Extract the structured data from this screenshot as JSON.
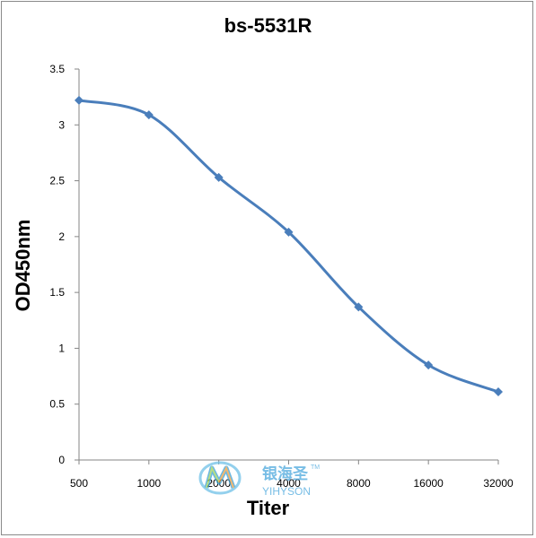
{
  "chart_data": {
    "type": "line",
    "title": "bs-5531R",
    "xlabel": "Titer",
    "ylabel": "OD450nm",
    "categories": [
      "500",
      "1000",
      "2000",
      "4000",
      "8000",
      "16000",
      "32000"
    ],
    "yticks": [
      "0",
      "0.5",
      "1",
      "1.5",
      "2",
      "2.5",
      "3",
      "3.5"
    ],
    "ylim": [
      0,
      3.5
    ],
    "series": [
      {
        "values": [
          3.22,
          3.09,
          2.53,
          2.04,
          1.37,
          0.85,
          0.61
        ]
      }
    ],
    "grid": false,
    "line_color": "#4a7ebb",
    "smooth": true,
    "marker": "diamond"
  },
  "watermark": {
    "cn_text": "银海圣",
    "tm": "TM",
    "en_text": "YIHYSON"
  }
}
